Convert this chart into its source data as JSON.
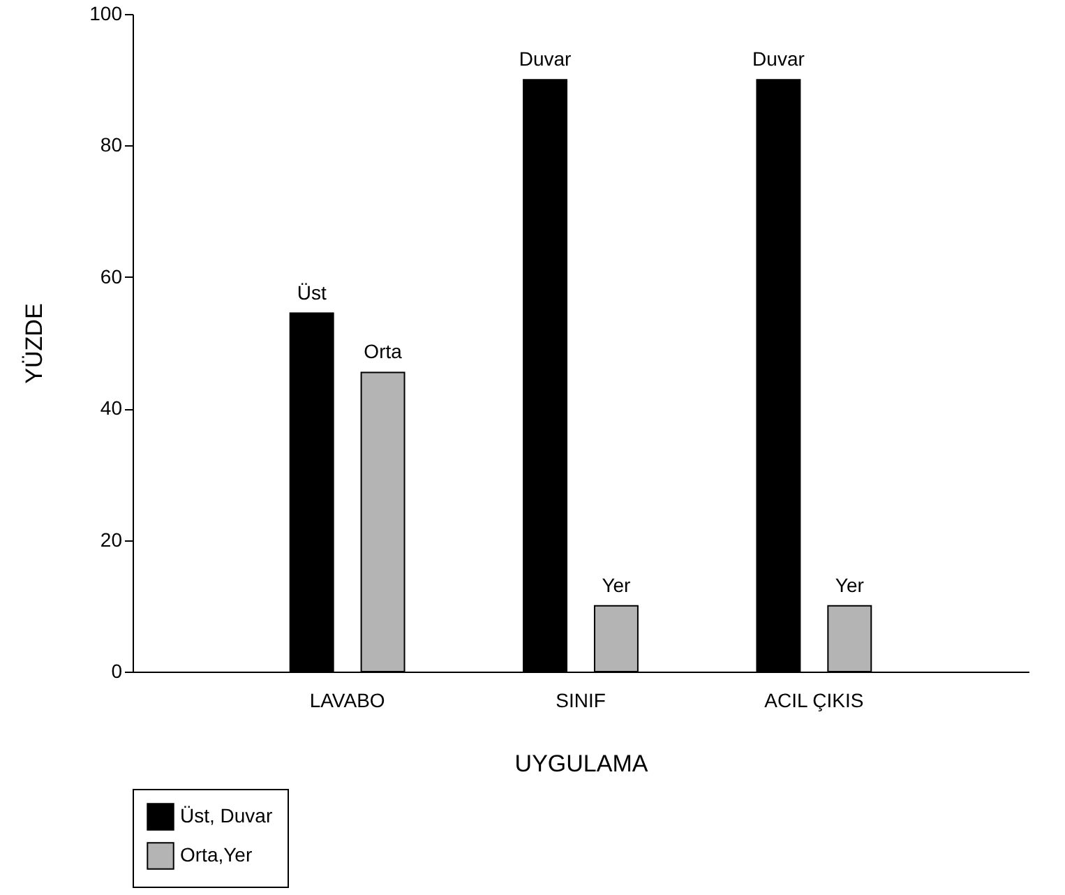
{
  "chart_data": {
    "type": "bar",
    "xlabel": "UYGULAMA",
    "ylabel": "YÜZDE",
    "categories": [
      "LAVABO",
      "SINIF",
      "ACIL ÇIKIS"
    ],
    "series": [
      {
        "name": "Üst, Duvar",
        "color": "#000000",
        "values": [
          54.5,
          90,
          90
        ],
        "value_labels": [
          "Üst",
          "Duvar",
          "Duvar"
        ]
      },
      {
        "name": "Orta,Yer",
        "color": "#b4b4b4",
        "values": [
          45.5,
          10,
          10
        ],
        "value_labels": [
          "Orta",
          "Yer",
          "Yer"
        ]
      }
    ],
    "ylim": [
      0,
      100
    ],
    "yticks": [
      0,
      20,
      40,
      60,
      80,
      100
    ],
    "grid": false,
    "legend": "bottom left"
  }
}
